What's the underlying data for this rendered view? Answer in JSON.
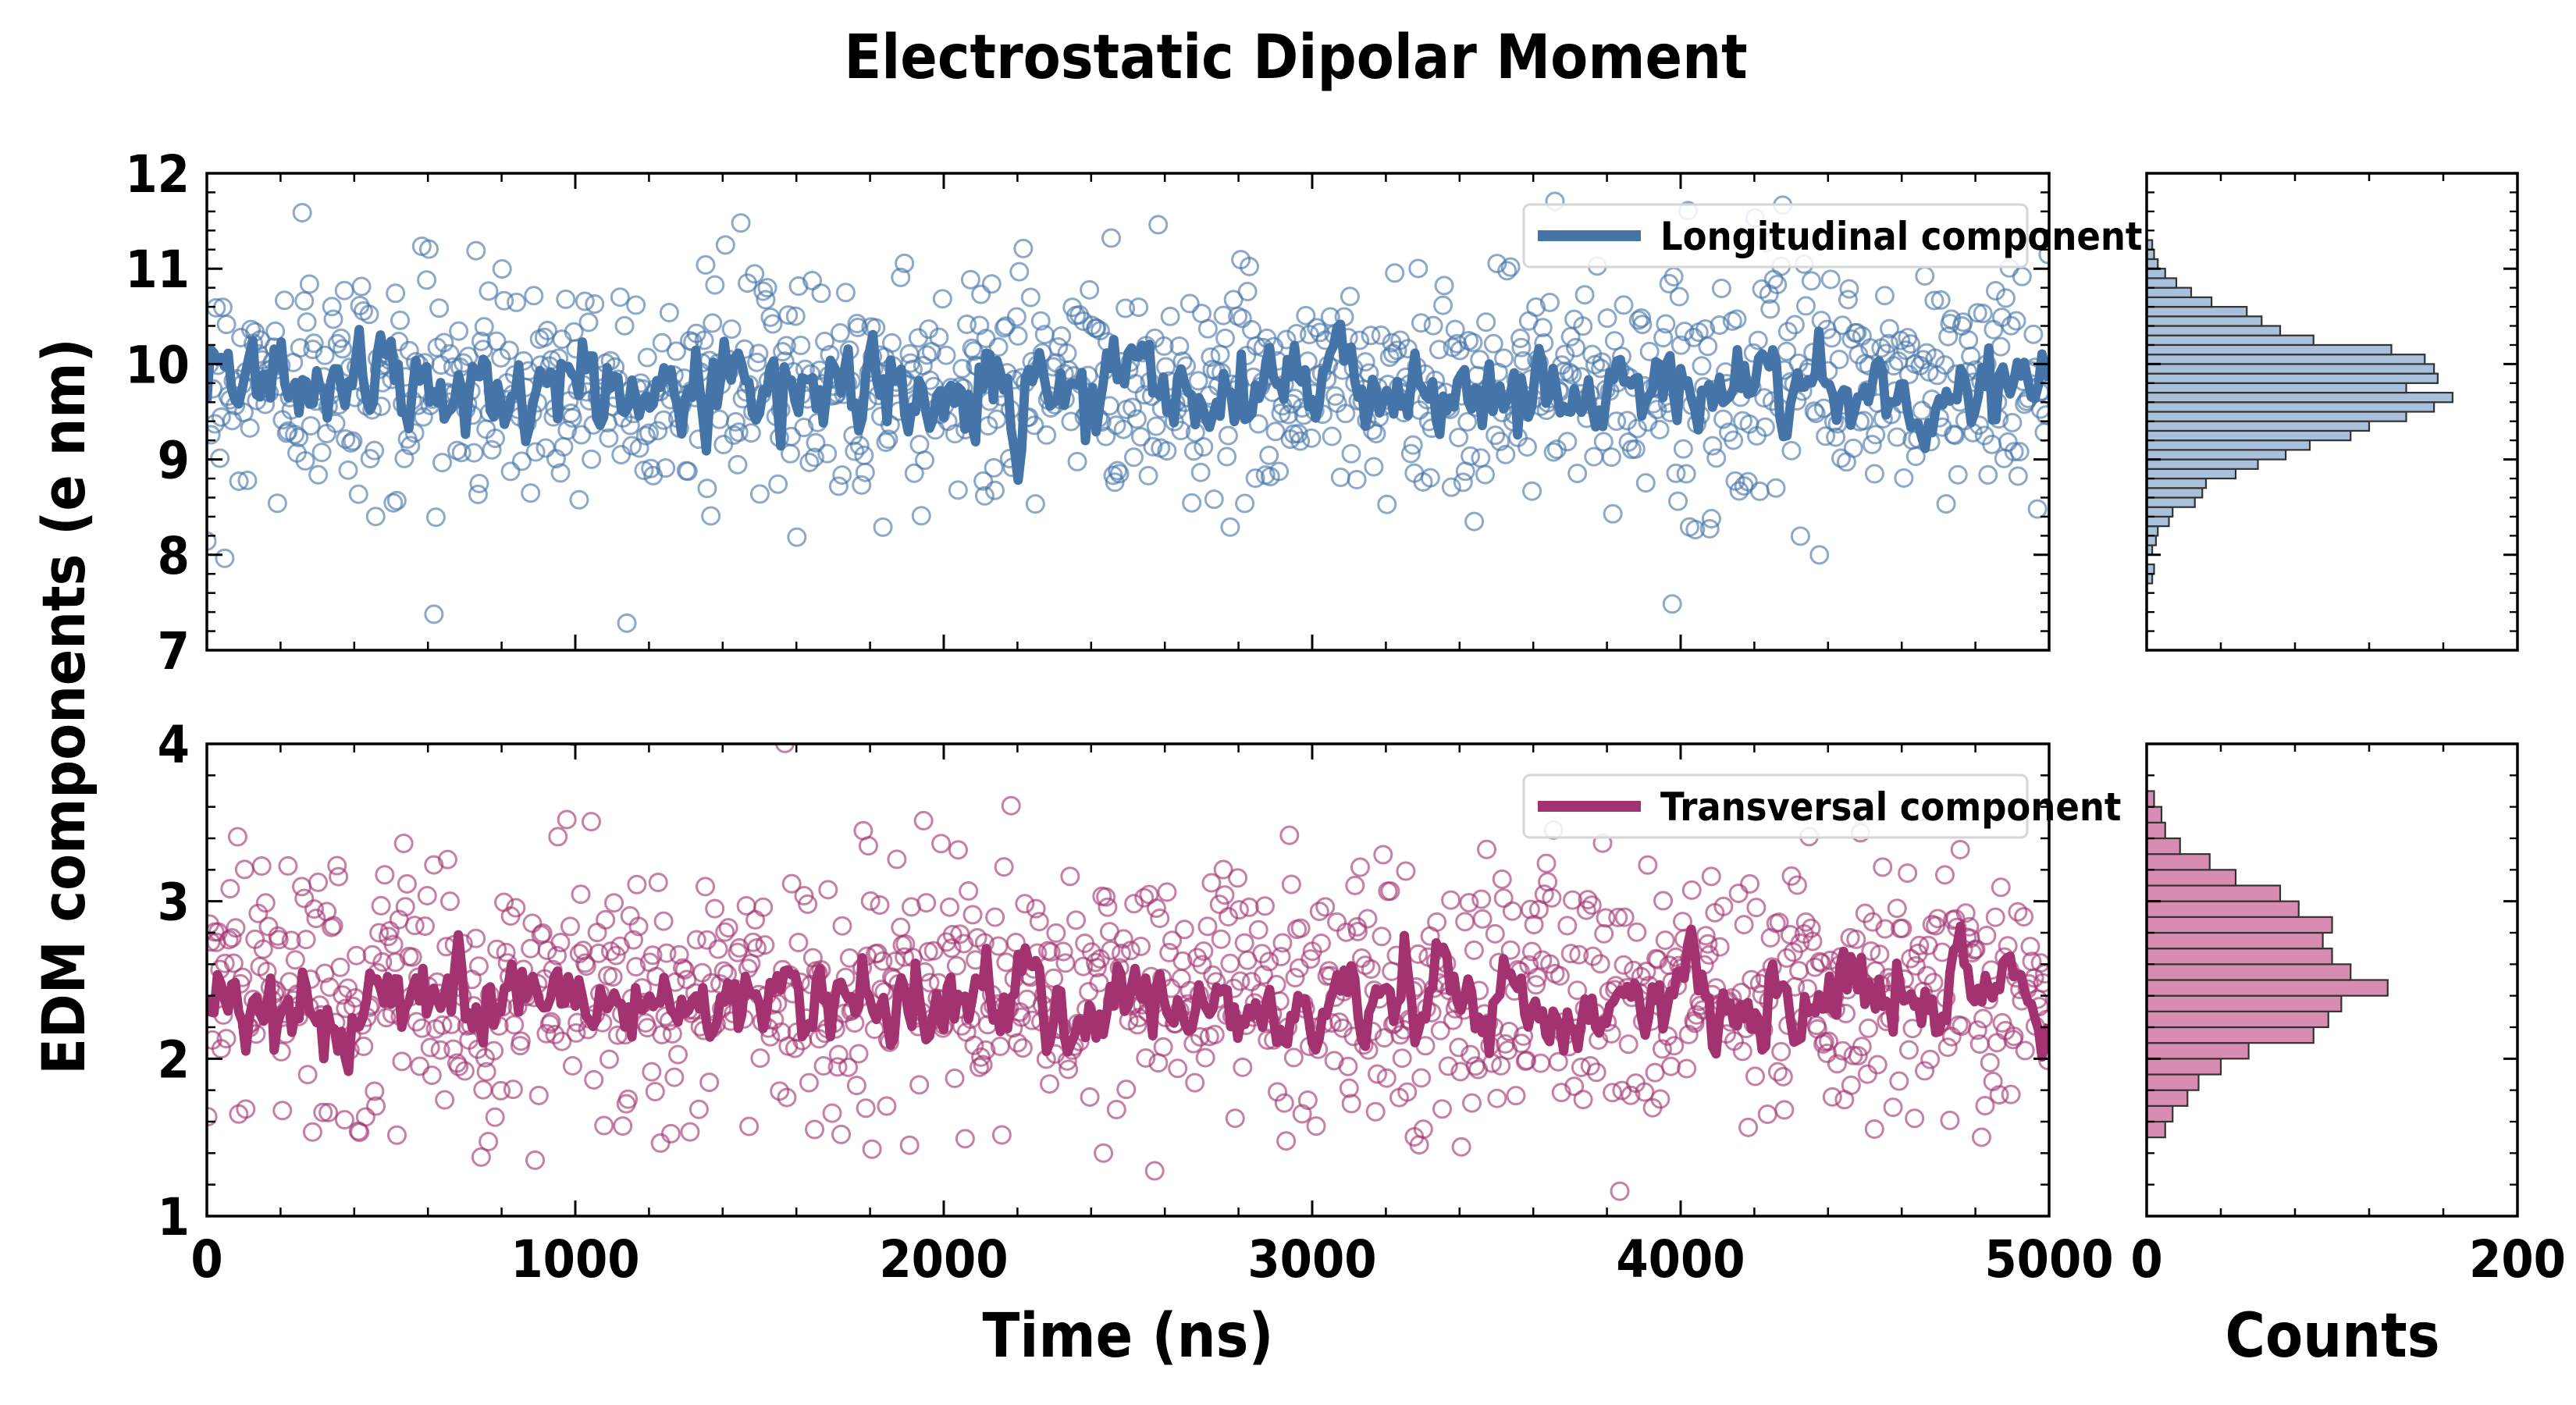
{
  "title": "Electrostatic Dipolar Moment",
  "ylabel": "EDM components (e nm)",
  "xlabel": "Time (ns)",
  "hist_xlabel": "Counts",
  "colors": {
    "longitudinal": "#4575a8",
    "transversal": "#a33271",
    "hist_long_fill": "#a9c0da",
    "hist_trans_fill": "#d98cb1"
  },
  "chart_data": [
    {
      "type": "scatter",
      "panel": "top-main",
      "xlim": [
        0,
        5000
      ],
      "ylim": [
        7,
        12
      ],
      "xticks": [
        0,
        1000,
        2000,
        3000,
        4000,
        5000
      ],
      "yticks": [
        7,
        8,
        9,
        10,
        11,
        12
      ],
      "legend": {
        "label": "Longitudinal component",
        "position": "top-right"
      },
      "series": [
        {
          "name": "Longitudinal component",
          "kind": "scatter-open-circles",
          "mean": 9.8,
          "sd": 0.6,
          "n": 1050
        },
        {
          "name": "Longitudinal component",
          "kind": "line-running-average",
          "mean": 9.75,
          "sd": 0.28
        }
      ]
    },
    {
      "type": "scatter",
      "panel": "bottom-main",
      "xlim": [
        0,
        5000
      ],
      "ylim": [
        1,
        4
      ],
      "xticks": [
        0,
        1000,
        2000,
        3000,
        4000,
        5000
      ],
      "yticks": [
        1,
        2,
        3,
        4
      ],
      "legend": {
        "label": "Transversal component",
        "position": "top-right"
      },
      "series": [
        {
          "name": "Transversal component",
          "kind": "scatter-open-circles",
          "mean": 2.4,
          "sd": 0.42,
          "n": 1050
        },
        {
          "name": "Transversal component",
          "kind": "line-running-average",
          "mean": 2.35,
          "sd": 0.15
        }
      ]
    },
    {
      "type": "bar",
      "panel": "top-hist",
      "orientation": "horizontal",
      "xlim": [
        0,
        200
      ],
      "ylim": [
        7,
        12
      ],
      "bin_edges": [
        7.7,
        7.8,
        7.9,
        8.0,
        8.1,
        8.2,
        8.3,
        8.4,
        8.5,
        8.6,
        8.7,
        8.8,
        8.9,
        9.0,
        9.1,
        9.2,
        9.3,
        9.4,
        9.5,
        9.6,
        9.7,
        9.8,
        9.9,
        10.0,
        10.1,
        10.2,
        10.3,
        10.4,
        10.5,
        10.6,
        10.7,
        10.8,
        10.9,
        11.0,
        11.1,
        11.2,
        11.3
      ],
      "values": [
        3,
        4,
        0,
        3,
        5,
        6,
        12,
        14,
        26,
        30,
        32,
        48,
        60,
        75,
        88,
        110,
        120,
        140,
        155,
        165,
        140,
        157,
        155,
        150,
        132,
        90,
        72,
        62,
        54,
        35,
        24,
        16,
        10,
        6,
        4,
        3
      ]
    },
    {
      "type": "bar",
      "panel": "bottom-hist",
      "orientation": "horizontal",
      "xlim": [
        0,
        200
      ],
      "ylim": [
        1,
        4
      ],
      "bin_edges": [
        1.5,
        1.6,
        1.7,
        1.8,
        1.9,
        2.0,
        2.1,
        2.2,
        2.3,
        2.4,
        2.5,
        2.6,
        2.7,
        2.8,
        2.9,
        3.0,
        3.1,
        3.2,
        3.3,
        3.4,
        3.5,
        3.6,
        3.7
      ],
      "values": [
        10,
        14,
        22,
        28,
        40,
        55,
        90,
        98,
        105,
        130,
        110,
        100,
        95,
        100,
        82,
        72,
        48,
        34,
        18,
        10,
        8,
        4
      ]
    }
  ]
}
